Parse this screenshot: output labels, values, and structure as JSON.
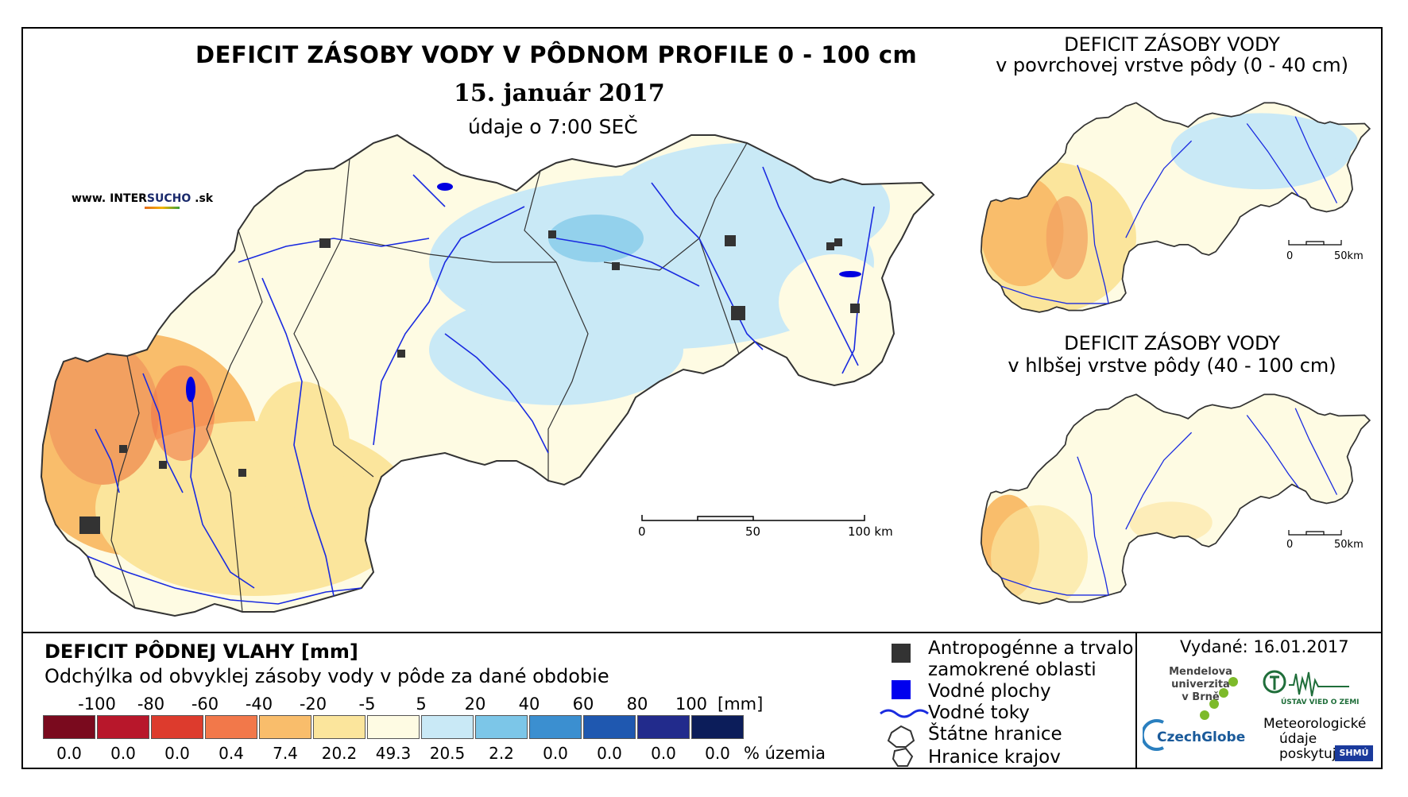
{
  "main_map": {
    "title": "DEFICIT ZÁSOBY VODY V PÔDNOM PROFILE 0 - 100 cm",
    "date": "15. január 2017",
    "time_note": "údaje o 7:00 SEČ",
    "scale_labels": [
      "0",
      "50",
      "100 km"
    ]
  },
  "branding": {
    "prefix": "www. INTER",
    "highlight": "SUCHO",
    "suffix": " .sk"
  },
  "inset_top": {
    "title_line1": "DEFICIT ZÁSOBY VODY",
    "title_line2": "v povrchovej vrstve pôdy (0 - 40 cm)",
    "scale_labels": [
      "0",
      "50km"
    ]
  },
  "inset_bottom": {
    "title_line1": "DEFICIT ZÁSOBY VODY",
    "title_line2": "v hlbšej vrstve pôdy (40 - 100 cm)",
    "scale_labels": [
      "0",
      "50km"
    ]
  },
  "legend": {
    "title": "DEFICIT PÔDNEJ VLAHY [mm]",
    "subtitle": "Odchýlka od obvyklej zásoby vody v pôde za dané obdobie",
    "unit": "[mm]",
    "percent_label": "% územia",
    "scale_values": [
      "-100",
      "-80",
      "-60",
      "-40",
      "-20",
      "-5",
      "5",
      "20",
      "40",
      "60",
      "80",
      "100"
    ],
    "classes": [
      {
        "color": "#7a0a1e",
        "percent": "0.0"
      },
      {
        "color": "#b8172b",
        "percent": "0.0"
      },
      {
        "color": "#dd3b2d",
        "percent": "0.0"
      },
      {
        "color": "#f2784a",
        "percent": "0.4"
      },
      {
        "color": "#f9bd6b",
        "percent": "7.4"
      },
      {
        "color": "#fbe59c",
        "percent": "20.2"
      },
      {
        "color": "#fefbe3",
        "percent": "49.3"
      },
      {
        "color": "#c9e9f6",
        "percent": "20.5"
      },
      {
        "color": "#7cc6e8",
        "percent": "2.2"
      },
      {
        "color": "#3b8fd0",
        "percent": "0.0"
      },
      {
        "color": "#1f58b0",
        "percent": "0.0"
      },
      {
        "color": "#222b8c",
        "percent": "0.0"
      },
      {
        "color": "#0c1d5a",
        "percent": "0.0"
      }
    ]
  },
  "symbols": {
    "anthropogenic_line1": "Antropogénne a trvalo",
    "anthropogenic_line2": "zamokrené oblasti",
    "water_bodies": "Vodné plochy",
    "rivers": "Vodné toky",
    "state_border": "Štátne hranice",
    "region_border": "Hranice krajov"
  },
  "info": {
    "issued": "Vydané: 16.01.2017",
    "mendel": [
      "Mendelova",
      "univerzita",
      "v Brně"
    ],
    "czechglobe": "CzechGlobe",
    "ustav": "ÚSTAV VIED O ZEMI",
    "meteo": [
      "Meteorologické",
      "údaje",
      "poskytuje:"
    ],
    "shmu": "SHMÚ"
  }
}
